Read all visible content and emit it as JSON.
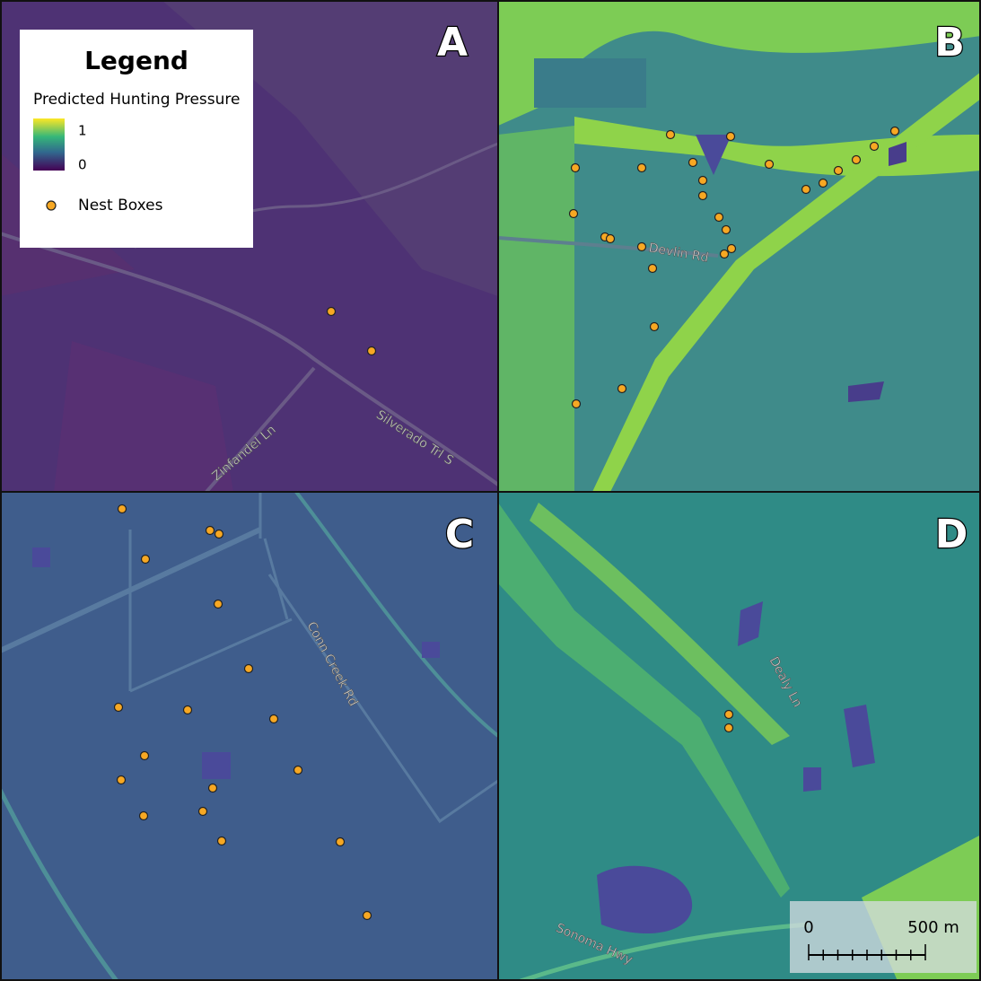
{
  "panels": [
    {
      "label": "A",
      "roads": [
        "Zinfandel Ln",
        "Silverado Trl S"
      ]
    },
    {
      "label": "B",
      "roads": [
        "Devlin Rd"
      ]
    },
    {
      "label": "C",
      "roads": [
        "Conn Creek Rd"
      ]
    },
    {
      "label": "D",
      "roads": [
        "Dealy Ln",
        "Sonoma Hwy"
      ]
    }
  ],
  "legend": {
    "title": "Legend",
    "ramp_title": "Predicted Hunting Pressure",
    "ramp_max": 1,
    "ramp_min": 0,
    "points": "Nest Boxes"
  },
  "scale_bar": {
    "start": "0",
    "end": "500 m"
  }
}
